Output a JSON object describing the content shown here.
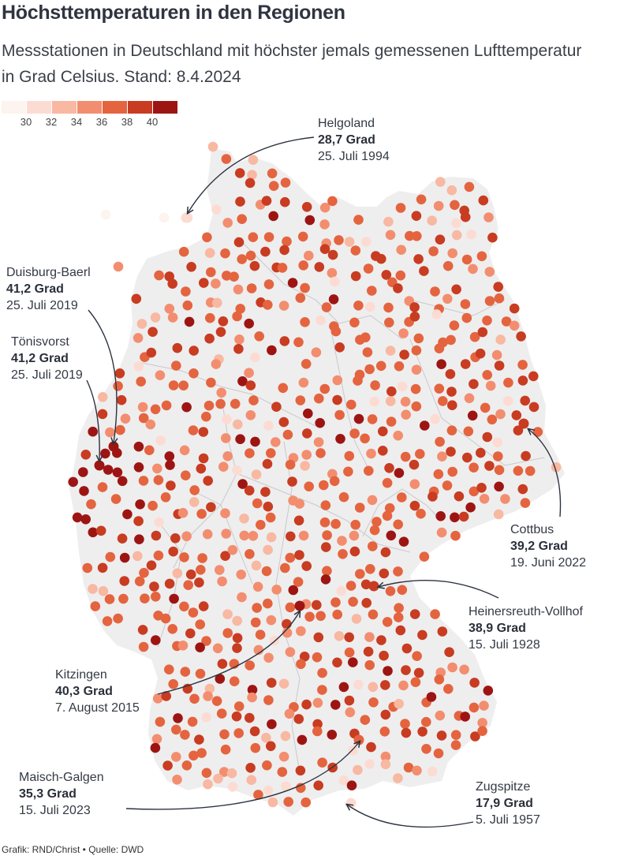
{
  "title": "Höchsttemperaturen in den Regionen",
  "subtitle": "Messstationen in Deutschland mit höchster jemals gemessenen Lufttemperatur in Grad Celsius. Stand: 8.4.2024",
  "legend": {
    "swatches": [
      "#fdf3ef",
      "#fcdcd2",
      "#f8b8a2",
      "#f28e6f",
      "#e4643f",
      "#c83c21",
      "#9d1513"
    ],
    "labels": [
      "30",
      "32",
      "34",
      "36",
      "38",
      "40"
    ]
  },
  "colors": {
    "land": "#eeeeef",
    "borders": "#c9c9cc",
    "arrow": "#2c3340"
  },
  "highlights": [
    {
      "name": "Helgoland",
      "value": "28,7 Grad",
      "date": "25. Juli 1994"
    },
    {
      "name": "Duisburg-Baerl",
      "value": "41,2 Grad",
      "date": "25. Juli 2019"
    },
    {
      "name": "Tönisvorst",
      "value": "41,2 Grad",
      "date": "25. Juli 2019"
    },
    {
      "name": "Cottbus",
      "value": "39,2 Grad",
      "date": "19. Juni 2022"
    },
    {
      "name": "Heinersreuth-Vollhof",
      "value": "38,9 Grad",
      "date": "15. Juli 1928"
    },
    {
      "name": "Kitzingen",
      "value": "40,3 Grad",
      "date": "7. August 2015"
    },
    {
      "name": "Maisch-Galgen",
      "value": "35,3 Grad",
      "date": "15. Juli 2023"
    },
    {
      "name": "Zugspitze",
      "value": "17,9 Grad",
      "date": "5. Juli 1957"
    }
  ],
  "source": "Grafik: RND/Christ • Quelle: DWD"
}
